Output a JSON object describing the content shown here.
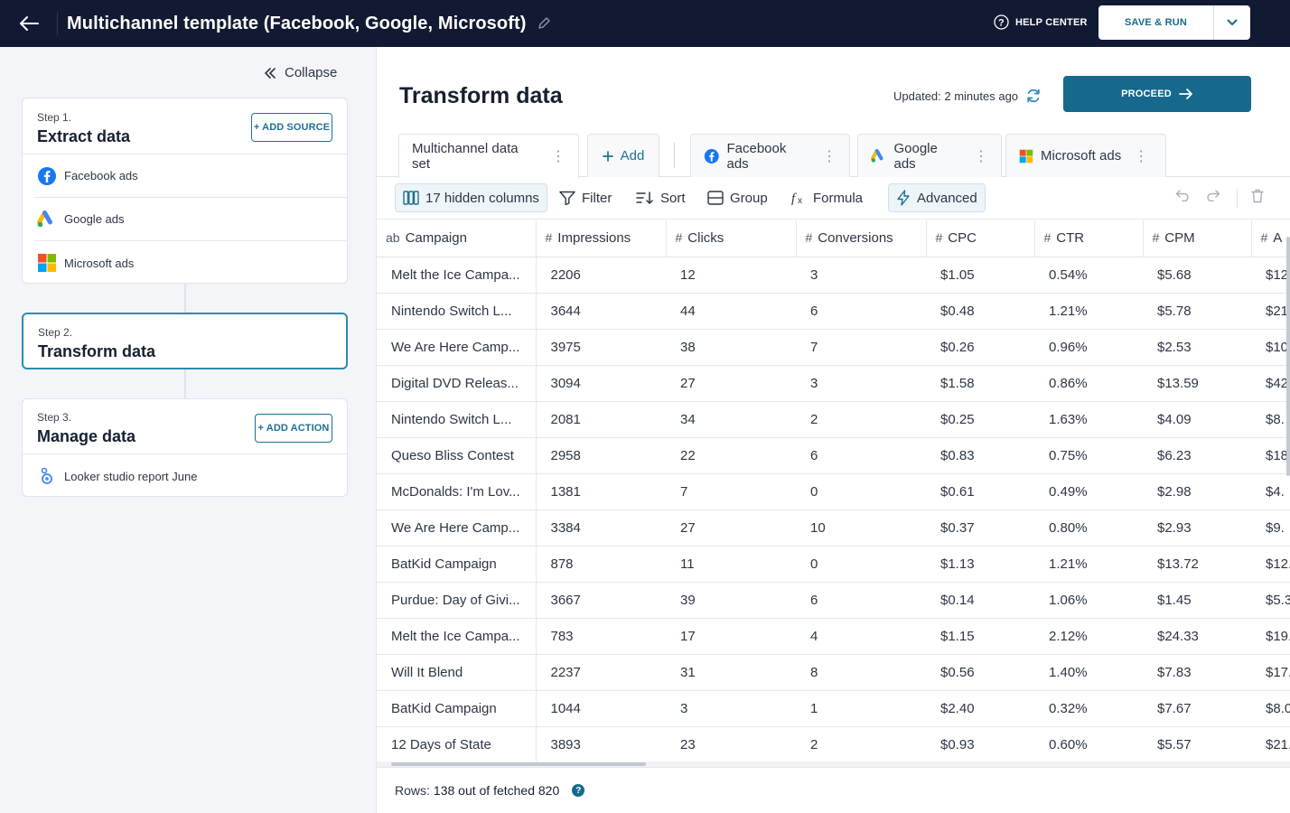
{
  "topbar": {
    "title": "Multichannel template (Facebook, Google, Microsoft)",
    "help_label": "HELP CENTER",
    "save_label": "SAVE & RUN",
    "colors": {
      "background": "#121a33",
      "accent": "#17688d"
    }
  },
  "sidebar": {
    "collapse_label": "Collapse",
    "step1": {
      "label": "Step 1.",
      "title": "Extract data",
      "button": "+ ADD SOURCE",
      "sources": [
        {
          "name": "Facebook ads",
          "icon": "facebook-icon"
        },
        {
          "name": "Google ads",
          "icon": "google-ads-icon"
        },
        {
          "name": "Microsoft ads",
          "icon": "microsoft-icon"
        }
      ]
    },
    "step2": {
      "label": "Step 2.",
      "title": "Transform data"
    },
    "step3": {
      "label": "Step 3.",
      "title": "Manage data",
      "button": "+ ADD ACTION",
      "actions": [
        {
          "name": "Looker studio report June",
          "icon": "looker-studio-icon"
        }
      ]
    }
  },
  "main": {
    "title": "Transform data",
    "updated": "Updated: 2 minutes ago",
    "proceed_label": "PROCEED",
    "tabs": [
      {
        "label": "Multichannel data set"
      },
      {
        "label": "Add"
      },
      {
        "label": "Facebook ads",
        "icon": "facebook-icon"
      },
      {
        "label": "Google ads",
        "icon": "google-ads-icon"
      },
      {
        "label": "Microsoft ads",
        "icon": "microsoft-icon"
      }
    ],
    "toolbar": {
      "hidden_columns": "17 hidden columns",
      "filter": "Filter",
      "sort": "Sort",
      "group": "Group",
      "formula": "Formula",
      "advanced": "Advanced"
    },
    "table": {
      "columns": [
        {
          "type": "ab",
          "name": "Campaign"
        },
        {
          "type": "#",
          "name": "Impressions"
        },
        {
          "type": "#",
          "name": "Clicks"
        },
        {
          "type": "#",
          "name": "Conversions"
        },
        {
          "type": "#",
          "name": "CPC"
        },
        {
          "type": "#",
          "name": "CTR"
        },
        {
          "type": "#",
          "name": "CPM"
        },
        {
          "type": "#",
          "name": "A"
        }
      ],
      "rows": [
        [
          "Melt the Ice Campa...",
          "2206",
          "12",
          "3",
          "$1.05",
          "0.54%",
          "$5.68",
          "$12"
        ],
        [
          "Nintendo Switch L...",
          "3644",
          "44",
          "6",
          "$0.48",
          "1.21%",
          "$5.78",
          "$21"
        ],
        [
          "We Are Here Camp...",
          "3975",
          "38",
          "7",
          "$0.26",
          "0.96%",
          "$2.53",
          "$10"
        ],
        [
          "Digital DVD Releas...",
          "3094",
          "27",
          "3",
          "$1.58",
          "0.86%",
          "$13.59",
          "$42"
        ],
        [
          "Nintendo Switch L...",
          "2081",
          "34",
          "2",
          "$0.25",
          "1.63%",
          "$4.09",
          "$8."
        ],
        [
          "Queso Bliss Contest",
          "2958",
          "22",
          "6",
          "$0.83",
          "0.75%",
          "$6.23",
          "$18"
        ],
        [
          "McDonalds: I'm Lov...",
          "1381",
          "7",
          "0",
          "$0.61",
          "0.49%",
          "$2.98",
          "$4."
        ],
        [
          "We Are Here Camp...",
          "3384",
          "27",
          "10",
          "$0.37",
          "0.80%",
          "$2.93",
          "$9."
        ],
        [
          "BatKid Campaign",
          "878",
          "11",
          "0",
          "$1.13",
          "1.21%",
          "$13.72",
          "$12."
        ],
        [
          "Purdue: Day of Givi...",
          "3667",
          "39",
          "6",
          "$0.14",
          "1.06%",
          "$1.45",
          "$5.3"
        ],
        [
          "Melt the Ice Campa...",
          "783",
          "17",
          "4",
          "$1.15",
          "2.12%",
          "$24.33",
          "$19."
        ],
        [
          "Will It Blend",
          "2237",
          "31",
          "8",
          "$0.56",
          "1.40%",
          "$7.83",
          "$17."
        ],
        [
          "BatKid Campaign",
          "1044",
          "3",
          "1",
          "$2.40",
          "0.32%",
          "$7.67",
          "$8.0"
        ],
        [
          "12 Days of State",
          "3893",
          "23",
          "2",
          "$0.93",
          "0.60%",
          "$5.57",
          "$21."
        ]
      ]
    },
    "footer": {
      "rows_label": "Rows:",
      "rows_value": "138 out of fetched 820"
    }
  }
}
